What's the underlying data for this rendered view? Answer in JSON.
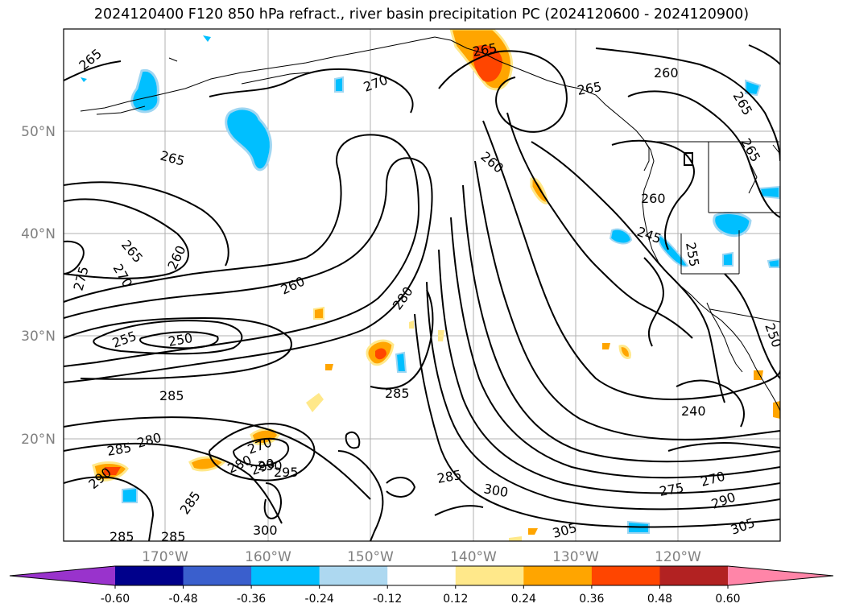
{
  "title": "2024120400 F120 850 hPa refract., river basin precipitation PC (2024120600 - 2024120900)",
  "map": {
    "lat_labels": [
      "50°N",
      "40°N",
      "30°N",
      "20°N"
    ],
    "lon_labels": [
      "170°W",
      "160°W",
      "150°W",
      "140°W",
      "130°W",
      "120°W"
    ],
    "contour_labels": [
      "265",
      "270",
      "260",
      "265",
      "260",
      "265",
      "265",
      "265",
      "260",
      "265",
      "275",
      "270",
      "265",
      "260",
      "245",
      "255",
      "280",
      "260",
      "255",
      "250",
      "285",
      "285",
      "240",
      "285",
      "280",
      "270",
      "280",
      "290",
      "295",
      "290",
      "285",
      "275",
      "270",
      "290",
      "285",
      "300",
      "285",
      "305",
      "305",
      "290",
      "285",
      "300",
      "250"
    ]
  },
  "colorbar": {
    "ticks": [
      "-0.60",
      "-0.48",
      "-0.36",
      "-0.24",
      "-0.12",
      "0.12",
      "0.24",
      "0.36",
      "0.48",
      "0.60"
    ],
    "colors": [
      "#9933cc",
      "#00008b",
      "#3a5fcd",
      "#00bfff",
      "#add8f0",
      "#ffffff",
      "#ffe88a",
      "#ffa500",
      "#ff4500",
      "#b22222",
      "#ff85a8"
    ]
  }
}
